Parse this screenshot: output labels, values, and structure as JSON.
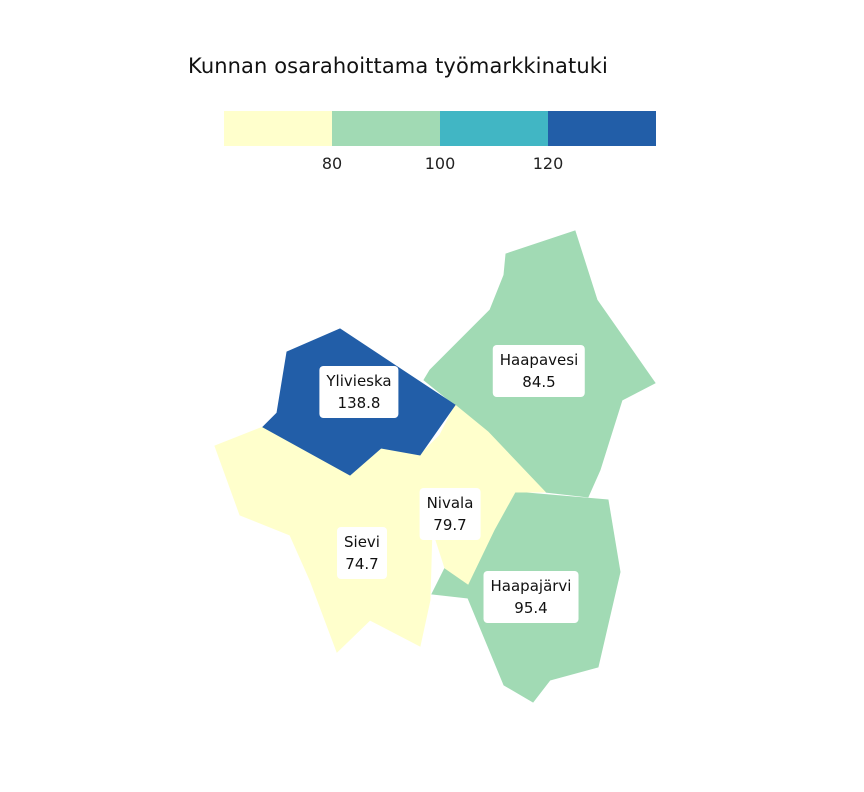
{
  "map": {
    "title": "Kunnan osarahoittama työmarkkinatuki",
    "legend": {
      "colors": [
        "#ffffcc",
        "#a1dab4",
        "#41b6c4",
        "#225ea8"
      ],
      "ticks": [
        "80",
        "100",
        "120"
      ]
    },
    "municipalities": [
      {
        "id": "ylivieska",
        "name": "Ylivieska",
        "value": "138.8",
        "color": "#225ea8"
      },
      {
        "id": "haapavesi",
        "name": "Haapavesi",
        "value": "84.5",
        "color": "#a1dab4"
      },
      {
        "id": "nivala",
        "name": "Nivala",
        "value": "79.7",
        "color": "#ffffcc"
      },
      {
        "id": "sievi",
        "name": "Sievi",
        "value": "74.7",
        "color": "#ffffcc"
      },
      {
        "id": "haapajarvi",
        "name": "Haapajärvi",
        "value": "95.4",
        "color": "#a1dab4"
      }
    ]
  }
}
